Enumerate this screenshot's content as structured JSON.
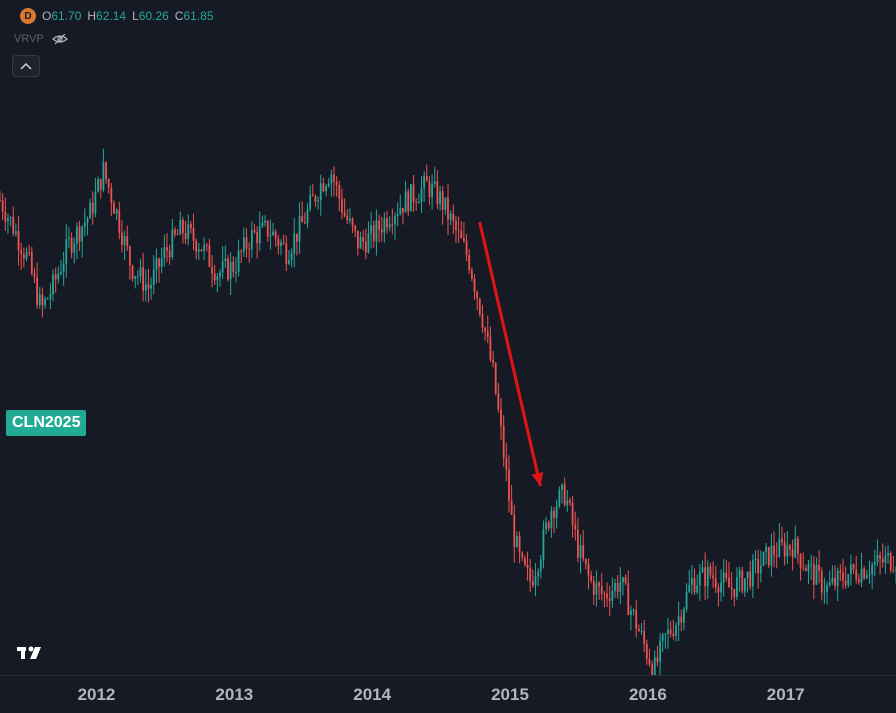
{
  "legend": {
    "badge": "D",
    "open_label": "O",
    "open": "61.70",
    "high_label": "H",
    "high": "62.14",
    "low_label": "L",
    "low": "60.26",
    "close_label": "C",
    "close": "61.85",
    "vrvp": "VRVP"
  },
  "symbol_label": "CLN2025",
  "colors": {
    "up": "#26a69a",
    "down": "#ef5350",
    "arrow": "#e01414",
    "label_bg": "#22ab94"
  },
  "icons": [
    "eye-slash-icon",
    "chevron-up-icon",
    "tradingview-logo-icon"
  ],
  "chart_data": {
    "type": "candlestick",
    "interval": "1W",
    "x_tick_labels": [
      "2012",
      "2013",
      "2014",
      "2015",
      "2016",
      "2017"
    ],
    "x_range": [
      2011.3,
      2017.8
    ],
    "y_range": [
      40,
      115
    ],
    "approx_close_path": [
      [
        2011.3,
        100
      ],
      [
        2011.38,
        97
      ],
      [
        2011.5,
        92
      ],
      [
        2011.6,
        85
      ],
      [
        2011.68,
        88
      ],
      [
        2011.8,
        94
      ],
      [
        2011.95,
        98
      ],
      [
        2012.05,
        104
      ],
      [
        2012.15,
        98
      ],
      [
        2012.25,
        91
      ],
      [
        2012.38,
        88
      ],
      [
        2012.5,
        93
      ],
      [
        2012.62,
        96
      ],
      [
        2012.75,
        94
      ],
      [
        2012.88,
        90
      ],
      [
        2013.0,
        91
      ],
      [
        2013.12,
        95
      ],
      [
        2013.25,
        96
      ],
      [
        2013.38,
        93
      ],
      [
        2013.5,
        97
      ],
      [
        2013.62,
        102
      ],
      [
        2013.7,
        104
      ],
      [
        2013.8,
        98
      ],
      [
        2013.9,
        94
      ],
      [
        2014.0,
        95
      ],
      [
        2014.12,
        98
      ],
      [
        2014.25,
        100
      ],
      [
        2014.4,
        102
      ],
      [
        2014.5,
        100
      ],
      [
        2014.6,
        96
      ],
      [
        2014.7,
        92
      ],
      [
        2014.8,
        84
      ],
      [
        2014.88,
        76
      ],
      [
        2014.95,
        66
      ],
      [
        2015.02,
        55
      ],
      [
        2015.08,
        50
      ],
      [
        2015.15,
        48
      ],
      [
        2015.22,
        52
      ],
      [
        2015.3,
        58
      ],
      [
        2015.4,
        60
      ],
      [
        2015.5,
        52
      ],
      [
        2015.58,
        48
      ],
      [
        2015.68,
        46
      ],
      [
        2015.8,
        48
      ],
      [
        2015.9,
        43
      ],
      [
        2016.0,
        38
      ],
      [
        2016.05,
        36
      ],
      [
        2016.12,
        40
      ],
      [
        2016.22,
        43
      ],
      [
        2016.32,
        48
      ],
      [
        2016.45,
        49
      ],
      [
        2016.6,
        47
      ],
      [
        2016.75,
        49
      ],
      [
        2016.9,
        52
      ],
      [
        2017.05,
        53
      ],
      [
        2017.15,
        50
      ],
      [
        2017.3,
        47
      ],
      [
        2017.45,
        49
      ],
      [
        2017.6,
        50
      ],
      [
        2017.75,
        51
      ],
      [
        2017.8,
        51
      ]
    ],
    "annotation": {
      "type": "arrow",
      "from": [
        2014.78,
        97
      ],
      "to": [
        2015.22,
        61
      ]
    }
  }
}
